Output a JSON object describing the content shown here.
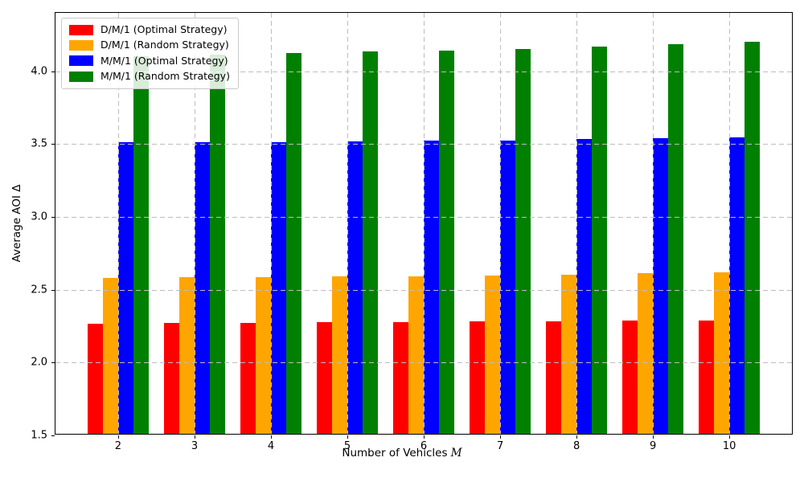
{
  "chart_data": {
    "type": "bar",
    "title": "",
    "xlabel": "Number of Vehicles",
    "xlabel_symbol": "M",
    "ylabel": "Average AOI Δ",
    "categories": [
      "2",
      "3",
      "4",
      "5",
      "6",
      "7",
      "8",
      "9",
      "10"
    ],
    "x_values": [
      2,
      3,
      4,
      5,
      6,
      7,
      8,
      9,
      10
    ],
    "series": [
      {
        "name": "D/M/1 (Optimal Strategy)",
        "color": "#ff0000",
        "values": [
          2.258,
          2.26,
          2.262,
          2.265,
          2.267,
          2.27,
          2.273,
          2.277,
          2.28
        ]
      },
      {
        "name": "D/M/1 (Random Strategy)",
        "color": "#ffa500",
        "values": [
          2.571,
          2.573,
          2.576,
          2.579,
          2.583,
          2.588,
          2.594,
          2.601,
          2.609
        ]
      },
      {
        "name": "M/M/1 (Optimal Strategy)",
        "color": "#0000ff",
        "values": [
          3.499,
          3.501,
          3.503,
          3.506,
          3.51,
          3.515,
          3.521,
          3.528,
          3.537
        ]
      },
      {
        "name": "M/M/1 (Random Strategy)",
        "color": "#008000",
        "values": [
          4.09,
          4.103,
          4.114,
          4.122,
          4.131,
          4.142,
          4.156,
          4.172,
          4.191
        ]
      }
    ],
    "ylim": [
      1.5,
      4.4
    ],
    "ytick_values": [
      1.5,
      2.0,
      2.5,
      3.0,
      3.5,
      4.0
    ],
    "ytick_labels": [
      "1.5",
      "2.0",
      "2.5",
      "3.0",
      "3.5",
      "4.0"
    ],
    "xlim": [
      1.18,
      10.84
    ],
    "bar_width_units": 0.2,
    "grid": "on",
    "grid_style": "dashed",
    "grid_color": "#bdbdbd",
    "grid_above_bars": true,
    "legend_position": "upper-left"
  }
}
